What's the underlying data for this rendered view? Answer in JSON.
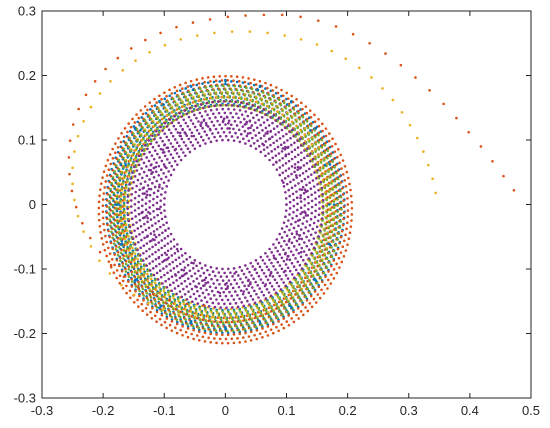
{
  "chart_data": {
    "type": "scatter",
    "title": "",
    "xlabel": "",
    "ylabel": "",
    "xlim": [
      -0.3,
      0.5
    ],
    "ylim": [
      -0.3,
      0.3
    ],
    "xticks": [
      -0.3,
      -0.2,
      -0.1,
      0,
      0.1,
      0.2,
      0.3,
      0.4,
      0.5
    ],
    "yticks": [
      -0.3,
      -0.2,
      -0.1,
      0,
      0.1,
      0.2,
      0.3
    ],
    "xtick_labels": [
      "-0.3",
      "-0.2",
      "-0.1",
      "0",
      "0.1",
      "0.2",
      "0.3",
      "0.4",
      "0.5"
    ],
    "ytick_labels": [
      "-0.3",
      "-0.2",
      "-0.1",
      "0",
      "0.1",
      "0.2",
      "0.3"
    ],
    "grid": false,
    "legend": "none",
    "series": [
      {
        "color": "#0072BD",
        "description_points": "spiral from outer ring to inner band",
        "points": [
          [
            0.17,
            0.0
          ],
          [
            0.163,
            0.061
          ],
          [
            0.139,
            0.115
          ],
          [
            0.101,
            0.155
          ],
          [
            0.053,
            0.178
          ],
          [
            0.0,
            0.187
          ],
          [
            -0.053,
            0.178
          ],
          [
            -0.101,
            0.155
          ],
          [
            -0.139,
            0.115
          ],
          [
            -0.163,
            0.061
          ],
          [
            -0.175,
            0.0
          ],
          [
            -0.169,
            -0.061
          ],
          [
            -0.145,
            -0.116
          ],
          [
            -0.105,
            -0.157
          ],
          [
            -0.056,
            -0.181
          ],
          [
            0.0,
            -0.19
          ],
          [
            0.056,
            -0.181
          ],
          [
            0.105,
            -0.157
          ],
          [
            0.145,
            -0.116
          ],
          [
            0.169,
            -0.061
          ],
          [
            0.178,
            0.0
          ],
          [
            0.171,
            0.062
          ],
          [
            0.148,
            0.118
          ],
          [
            0.108,
            0.16
          ],
          [
            0.057,
            0.184
          ],
          [
            0.0,
            0.193
          ],
          [
            -0.057,
            0.184
          ],
          [
            -0.108,
            0.16
          ],
          [
            -0.148,
            0.118
          ],
          [
            -0.171,
            0.062
          ],
          [
            -0.18,
            0.0
          ],
          [
            -0.171,
            -0.062
          ],
          [
            -0.148,
            -0.118
          ],
          [
            -0.108,
            -0.16
          ],
          [
            -0.057,
            -0.184
          ],
          [
            0.0,
            -0.193
          ],
          [
            0.057,
            -0.184
          ],
          [
            0.108,
            -0.16
          ],
          [
            0.148,
            -0.118
          ],
          [
            0.171,
            -0.062
          ]
        ]
      },
      {
        "color": "#D95319",
        "points": [
          [
            0.472,
            0.022
          ],
          [
            0.455,
            0.044
          ],
          [
            0.437,
            0.067
          ],
          [
            0.418,
            0.09
          ],
          [
            0.398,
            0.112
          ],
          [
            0.378,
            0.134
          ],
          [
            0.357,
            0.156
          ],
          [
            0.334,
            0.177
          ],
          [
            0.311,
            0.197
          ],
          [
            0.287,
            0.216
          ],
          [
            0.262,
            0.234
          ],
          [
            0.236,
            0.25
          ],
          [
            0.209,
            0.264
          ],
          [
            0.181,
            0.276
          ],
          [
            0.152,
            0.285
          ],
          [
            0.123,
            0.291
          ],
          [
            0.093,
            0.294
          ],
          [
            0.063,
            0.294
          ],
          [
            0.033,
            0.293
          ],
          [
            0.004,
            0.291
          ],
          [
            -0.025,
            0.287
          ],
          [
            -0.053,
            0.282
          ],
          [
            -0.08,
            0.275
          ],
          [
            -0.106,
            0.266
          ],
          [
            -0.131,
            0.255
          ],
          [
            -0.154,
            0.242
          ],
          [
            -0.176,
            0.227
          ],
          [
            -0.196,
            0.21
          ],
          [
            -0.213,
            0.191
          ],
          [
            -0.228,
            0.17
          ],
          [
            -0.24,
            0.148
          ],
          [
            -0.249,
            0.124
          ],
          [
            -0.254,
            0.099
          ],
          [
            -0.256,
            0.073
          ],
          [
            -0.255,
            0.047
          ],
          [
            -0.251,
            0.021
          ],
          [
            -0.244,
            -0.004
          ],
          [
            -0.234,
            -0.029
          ],
          [
            -0.221,
            -0.052
          ],
          [
            -0.205,
            -0.074
          ],
          [
            -0.187,
            -0.094
          ],
          [
            -0.166,
            -0.112
          ],
          [
            -0.143,
            -0.127
          ],
          [
            -0.118,
            -0.139
          ],
          [
            -0.091,
            -0.148
          ],
          [
            -0.063,
            -0.154
          ],
          [
            -0.034,
            -0.157
          ]
        ]
      },
      {
        "color": "#EDB120",
        "points": [
          [
            0.344,
            0.018
          ],
          [
            0.339,
            0.04
          ],
          [
            0.332,
            0.061
          ],
          [
            0.324,
            0.082
          ],
          [
            0.314,
            0.103
          ],
          [
            0.302,
            0.123
          ],
          [
            0.289,
            0.143
          ],
          [
            0.274,
            0.162
          ],
          [
            0.257,
            0.18
          ],
          [
            0.239,
            0.197
          ],
          [
            0.219,
            0.212
          ],
          [
            0.197,
            0.226
          ],
          [
            0.174,
            0.238
          ],
          [
            0.15,
            0.248
          ],
          [
            0.124,
            0.256
          ],
          [
            0.097,
            0.262
          ],
          [
            0.069,
            0.266
          ],
          [
            0.04,
            0.268
          ],
          [
            0.011,
            0.268
          ],
          [
            -0.018,
            0.266
          ],
          [
            -0.046,
            0.262
          ],
          [
            -0.073,
            0.256
          ],
          [
            -0.099,
            0.247
          ],
          [
            -0.124,
            0.236
          ],
          [
            -0.147,
            0.223
          ],
          [
            -0.168,
            0.208
          ],
          [
            -0.188,
            0.191
          ],
          [
            -0.205,
            0.172
          ],
          [
            -0.22,
            0.151
          ],
          [
            -0.232,
            0.129
          ],
          [
            -0.241,
            0.106
          ],
          [
            -0.247,
            0.082
          ],
          [
            -0.25,
            0.057
          ],
          [
            -0.25,
            0.032
          ],
          [
            -0.247,
            0.007
          ],
          [
            -0.241,
            -0.018
          ],
          [
            -0.232,
            -0.042
          ],
          [
            -0.22,
            -0.065
          ],
          [
            -0.206,
            -0.087
          ],
          [
            -0.189,
            -0.107
          ],
          [
            -0.17,
            -0.125
          ],
          [
            -0.149,
            -0.14
          ],
          [
            -0.126,
            -0.153
          ],
          [
            -0.102,
            -0.163
          ],
          [
            -0.076,
            -0.17
          ],
          [
            -0.049,
            -0.174
          ],
          [
            -0.022,
            -0.175
          ]
        ]
      },
      {
        "color": "#7E2F8E",
        "points": [
          [
            0.1,
            0.0
          ],
          [
            0.095,
            0.034
          ],
          [
            0.083,
            0.066
          ],
          [
            0.063,
            0.092
          ],
          [
            0.037,
            0.11
          ],
          [
            0.007,
            0.118
          ],
          [
            -0.025,
            0.117
          ],
          [
            -0.055,
            0.106
          ],
          [
            -0.081,
            0.086
          ],
          [
            -0.099,
            0.059
          ],
          [
            -0.108,
            0.027
          ],
          [
            -0.108,
            -0.007
          ],
          [
            -0.098,
            -0.04
          ],
          [
            -0.079,
            -0.069
          ],
          [
            -0.052,
            -0.091
          ],
          [
            -0.02,
            -0.104
          ],
          [
            0.015,
            -0.107
          ],
          [
            0.049,
            -0.1
          ],
          [
            0.08,
            -0.083
          ],
          [
            0.104,
            -0.057
          ],
          [
            0.119,
            -0.025
          ],
          [
            0.123,
            0.01
          ],
          [
            0.116,
            0.045
          ],
          [
            0.099,
            0.077
          ],
          [
            0.073,
            0.102
          ],
          [
            0.041,
            0.119
          ],
          [
            0.005,
            0.126
          ],
          [
            -0.031,
            0.123
          ],
          [
            -0.065,
            0.11
          ],
          [
            -0.094,
            0.088
          ],
          [
            -0.114,
            0.058
          ],
          [
            -0.125,
            0.024
          ],
          [
            -0.126,
            -0.012
          ],
          [
            -0.116,
            -0.047
          ],
          [
            -0.096,
            -0.078
          ],
          [
            -0.068,
            -0.102
          ],
          [
            -0.034,
            -0.117
          ],
          [
            0.002,
            -0.122
          ],
          [
            0.038,
            -0.117
          ],
          [
            0.071,
            -0.101
          ],
          [
            0.098,
            -0.077
          ],
          [
            0.117,
            -0.046
          ],
          [
            0.126,
            -0.012
          ],
          [
            0.125,
            0.023
          ],
          [
            0.114,
            0.057
          ],
          [
            0.094,
            0.087
          ],
          [
            0.066,
            0.11
          ],
          [
            0.032,
            0.124
          ],
          [
            -0.004,
            0.128
          ],
          [
            -0.04,
            0.122
          ],
          [
            -0.073,
            0.106
          ],
          [
            -0.1,
            0.081
          ],
          [
            -0.119,
            0.05
          ],
          [
            -0.128,
            0.015
          ],
          [
            -0.127,
            -0.021
          ],
          [
            -0.116,
            -0.055
          ],
          [
            -0.095,
            -0.085
          ],
          [
            -0.066,
            -0.108
          ],
          [
            -0.032,
            -0.122
          ],
          [
            0.004,
            -0.127
          ],
          [
            0.041,
            -0.121
          ],
          [
            0.075,
            -0.105
          ],
          [
            0.103,
            -0.08
          ],
          [
            0.122,
            -0.048
          ],
          [
            0.131,
            -0.013
          ],
          [
            0.13,
            0.023
          ],
          [
            0.119,
            0.058
          ],
          [
            0.098,
            0.089
          ],
          [
            0.069,
            0.113
          ],
          [
            0.035,
            0.128
          ],
          [
            -0.002,
            0.133
          ],
          [
            -0.039,
            0.127
          ],
          [
            -0.074,
            0.111
          ],
          [
            -0.102,
            0.085
          ],
          [
            -0.122,
            0.053
          ],
          [
            -0.132,
            0.017
          ],
          [
            -0.132,
            -0.02
          ],
          [
            -0.121,
            -0.056
          ],
          [
            -0.1,
            -0.087
          ],
          [
            -0.071,
            -0.111
          ],
          [
            -0.036,
            -0.126
          ],
          [
            0.001,
            -0.131
          ],
          [
            0.038,
            -0.126
          ],
          [
            0.073,
            -0.11
          ],
          [
            0.101,
            -0.085
          ],
          [
            0.121,
            -0.053
          ],
          [
            0.132,
            -0.017
          ],
          [
            0.132,
            0.02
          ],
          [
            0.122,
            0.056
          ],
          [
            0.102,
            0.088
          ],
          [
            0.074,
            0.113
          ],
          [
            0.04,
            0.129
          ],
          [
            0.003,
            0.135
          ],
          [
            -0.035,
            0.13
          ],
          [
            -0.07,
            0.116
          ],
          [
            -0.1,
            0.092
          ],
          [
            -0.122,
            0.061
          ],
          [
            -0.135,
            0.025
          ],
          [
            -0.137,
            -0.013
          ],
          [
            -0.128,
            -0.05
          ],
          [
            -0.109,
            -0.083
          ],
          [
            -0.081,
            -0.11
          ],
          [
            -0.047,
            -0.128
          ],
          [
            -0.009,
            -0.137
          ],
          [
            0.03,
            -0.135
          ],
          [
            0.066,
            -0.124
          ],
          [
            0.098,
            -0.103
          ],
          [
            0.124,
            -0.074
          ]
        ]
      }
    ],
    "band_series": [
      {
        "color": "#0072BD",
        "r_inner": 0.16,
        "r_outer": 0.195,
        "dy": -0.004
      },
      {
        "color": "#D95319",
        "r_inner": 0.168,
        "r_outer": 0.207,
        "dy": -0.008
      },
      {
        "color": "#EDB120",
        "r_inner": 0.158,
        "r_outer": 0.178,
        "dy": -0.004
      },
      {
        "color": "#77AC30",
        "r_inner": 0.16,
        "r_outer": 0.19,
        "dy": -0.006
      },
      {
        "color": "#7E2F8E",
        "r_inner": 0.1,
        "r_outer": 0.16,
        "dy": 0.0
      }
    ]
  }
}
